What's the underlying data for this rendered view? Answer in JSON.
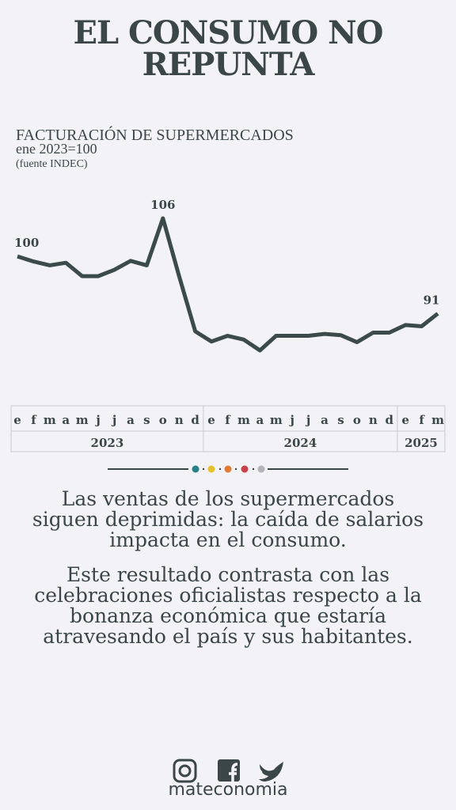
{
  "chart_data": {
    "type": "line",
    "title": "EL CONSUMO NO REPUNTA",
    "subtitle": "FACTURACIÓN DE SUPERMERCADOS",
    "index_note": "ene 2023=100",
    "source": "(fuente INDEC)",
    "categories": [
      "e",
      "f",
      "m",
      "a",
      "m",
      "j",
      "j",
      "a",
      "s",
      "o",
      "n",
      "d",
      "e",
      "f",
      "m",
      "a",
      "m",
      "j",
      "j",
      "a",
      "s",
      "o",
      "n",
      "d",
      "e",
      "f",
      "m"
    ],
    "years": [
      "2023",
      "2024",
      "2025"
    ],
    "color": "#3b4a4a",
    "series": [
      {
        "name": "Facturación",
        "color": "#3b4a4a",
        "values": [
          100,
          99.2,
          98.6,
          99,
          96.9,
          96.9,
          97.9,
          99.3,
          98.6,
          106,
          96.9,
          88.2,
          86.6,
          87.5,
          86.9,
          85.2,
          87.5,
          87.5,
          87.5,
          87.8,
          87.6,
          86.5,
          88,
          88,
          89.2,
          89,
          91
        ],
        "value_labels": [
          "100",
          null,
          null,
          null,
          null,
          null,
          null,
          null,
          null,
          "106",
          null,
          null,
          null,
          null,
          null,
          null,
          null,
          null,
          null,
          null,
          null,
          null,
          null,
          null,
          null,
          null,
          "91"
        ]
      }
    ]
  },
  "text": {
    "paragraphs": [
      "Las ventas de los supermercados siguen deprimidas: la caída de salarios impacta en el consumo.",
      "Este resultado contrasta con las celebraciones oficialistas respecto a la bonanza económica que estaría atravesando el país y sus habitantes."
    ]
  },
  "footer": {
    "brand": "mateconomia"
  }
}
